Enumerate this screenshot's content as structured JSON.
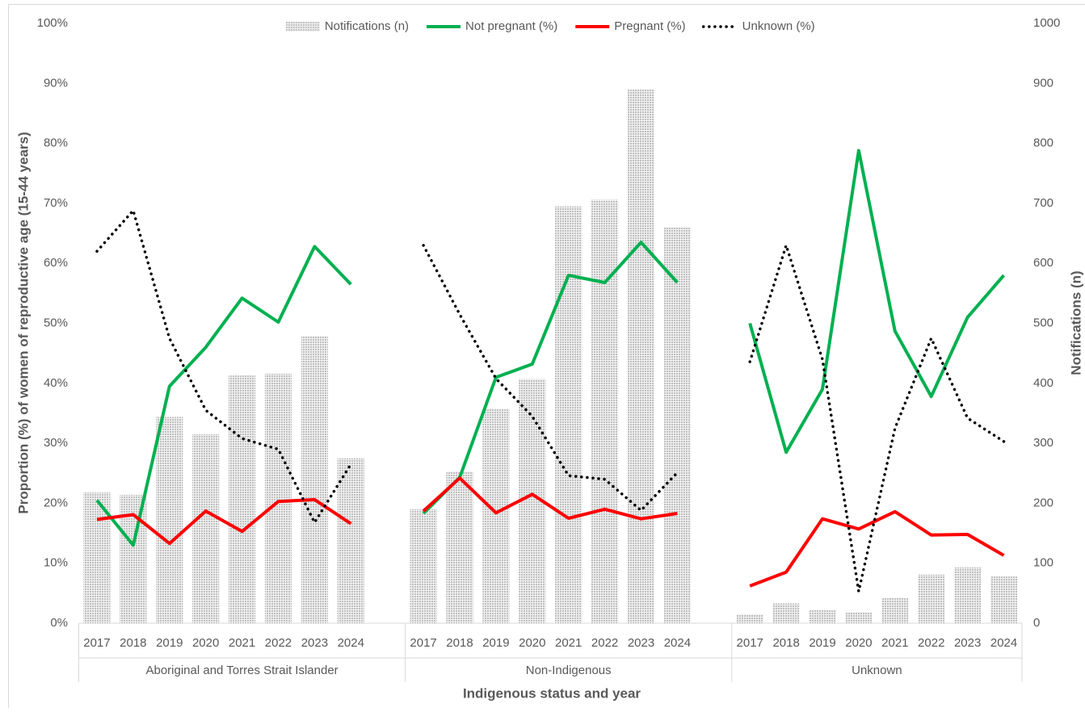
{
  "chart_data": {
    "type": "bar-line",
    "xlabel": "Indigenous status and year",
    "ylabel": "Proportion (%) of women of reproductive age (15-44 years)",
    "y2label": "Notifications (n)",
    "groups": [
      "Aboriginal and Torres Strait Islander",
      "Non-Indigenous",
      "Unknown"
    ],
    "categories": [
      "2017",
      "2018",
      "2019",
      "2020",
      "2021",
      "2022",
      "2023",
      "2024",
      null,
      "2017",
      "2018",
      "2019",
      "2020",
      "2021",
      "2022",
      "2023",
      "2024",
      null,
      "2017",
      "2018",
      "2019",
      "2020",
      "2021",
      "2022",
      "2023",
      "2024"
    ],
    "series": [
      {
        "name": "Notifications (n)",
        "type": "bar",
        "axis": "y2",
        "color": "#bfbfbf",
        "values": [
          218,
          214,
          344,
          315,
          413,
          416,
          479,
          275,
          null,
          190,
          253,
          357,
          407,
          695,
          706,
          890,
          660,
          null,
          15,
          33,
          22,
          18,
          42,
          81,
          93,
          78
        ]
      },
      {
        "name": "Not pregnant (%)",
        "type": "line",
        "color": "#00b050",
        "values": [
          20.5,
          13,
          39.5,
          46,
          54.2,
          50.2,
          62.8,
          56.5,
          null,
          18.3,
          24.3,
          41,
          43.2,
          58,
          56.8,
          63.5,
          56.8,
          null,
          50,
          28.5,
          39,
          78.8,
          48.7,
          37.8,
          51,
          58
        ]
      },
      {
        "name": "Pregnant (%)",
        "type": "line",
        "color": "#ff0000",
        "values": [
          17.3,
          18.1,
          13.3,
          18.7,
          15.3,
          20.3,
          20.6,
          16.6,
          null,
          18.7,
          24.2,
          18.4,
          21.5,
          17.5,
          19,
          17.4,
          18.3,
          null,
          6.2,
          8.5,
          17.4,
          15.7,
          18.6,
          14.7,
          14.8,
          11.3
        ]
      },
      {
        "name": "Unknown (%)",
        "type": "line",
        "dashed": true,
        "color": "#000000",
        "values": [
          62,
          68.8,
          47.5,
          35.5,
          30.8,
          29,
          16.8,
          26.5,
          null,
          63,
          51.5,
          40.8,
          34.5,
          24.6,
          24,
          18.8,
          25.1,
          null,
          43.6,
          63,
          44,
          5.3,
          32.5,
          47.5,
          34.2,
          30.3
        ]
      }
    ],
    "ylim": [
      0,
      100
    ],
    "yticks": [
      {
        "value": 0,
        "label": "0%"
      },
      {
        "value": 10,
        "label": "10%"
      },
      {
        "value": 20,
        "label": "20%"
      },
      {
        "value": 30,
        "label": "30%"
      },
      {
        "value": 40,
        "label": "40%"
      },
      {
        "value": 50,
        "label": "50%"
      },
      {
        "value": 60,
        "label": "60%"
      },
      {
        "value": 70,
        "label": "70%"
      },
      {
        "value": 80,
        "label": "80%"
      },
      {
        "value": 90,
        "label": "90%"
      },
      {
        "value": 100,
        "label": "100%"
      }
    ],
    "y2lim": [
      0,
      1000
    ],
    "y2ticks": [
      0,
      100,
      200,
      300,
      400,
      500,
      600,
      700,
      800,
      900,
      1000
    ],
    "grid": false,
    "legend": "top"
  }
}
